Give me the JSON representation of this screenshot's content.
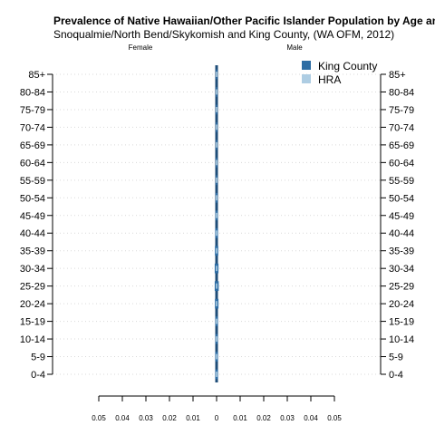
{
  "chart_data": {
    "type": "bar",
    "orientation": "horizontal-population-pyramid",
    "title": "Prevalence of Native Hawaiian/Other Pacific Islander Population by Age and Gender",
    "subtitle": "Snoqualmie/North Bend/Skykomish and King County, (WA OFM, 2012)",
    "left_label": "Female",
    "right_label": "Male",
    "categories": [
      "0-4",
      "5-9",
      "10-14",
      "15-19",
      "20-24",
      "25-29",
      "30-34",
      "35-39",
      "40-44",
      "45-49",
      "50-54",
      "55-59",
      "60-64",
      "65-69",
      "70-74",
      "75-79",
      "80-84",
      "85+"
    ],
    "x_ticks": [
      "0.05",
      "0.04",
      "0.03",
      "0.02",
      "0.01",
      "0",
      "0.01",
      "0.02",
      "0.03",
      "0.04",
      "0.05"
    ],
    "xlim": [
      -0.05,
      0.05
    ],
    "grid": true,
    "legend_position": "top-right",
    "series": [
      {
        "name": "King County",
        "color": "#2e6da4",
        "female": [
          0.0006,
          0.0006,
          0.0005,
          0.0005,
          0.0007,
          0.0008,
          0.0008,
          0.0007,
          0.0006,
          0.0005,
          0.0004,
          0.0003,
          0.0003,
          0.0002,
          0.0001,
          0.0001,
          0.0001,
          0.0001
        ],
        "male": [
          0.0006,
          0.0006,
          0.0005,
          0.0006,
          0.0008,
          0.0009,
          0.0008,
          0.0007,
          0.0006,
          0.0005,
          0.0004,
          0.0003,
          0.0002,
          0.0002,
          0.0001,
          0.0001,
          0.0001,
          0.0001
        ]
      },
      {
        "name": "HRA",
        "color": "#aecde3",
        "female": [
          0.0002,
          0.0002,
          0.0002,
          0.0002,
          0.0002,
          0.0003,
          0.0003,
          0.0003,
          0.0002,
          0.0002,
          0.0002,
          0.0001,
          0.0001,
          0.0001,
          0.0,
          0.0,
          0.0,
          0.0
        ],
        "male": [
          0.0002,
          0.0002,
          0.0002,
          0.0002,
          0.0003,
          0.0003,
          0.0003,
          0.0002,
          0.0002,
          0.0002,
          0.0001,
          0.0001,
          0.0001,
          0.0001,
          0.0,
          0.0,
          0.0,
          0.0
        ]
      }
    ]
  }
}
